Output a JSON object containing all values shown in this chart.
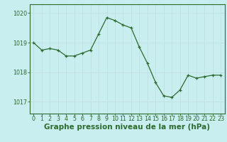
{
  "x": [
    0,
    1,
    2,
    3,
    4,
    5,
    6,
    7,
    8,
    9,
    10,
    11,
    12,
    13,
    14,
    15,
    16,
    17,
    18,
    19,
    20,
    21,
    22,
    23
  ],
  "y": [
    1019.0,
    1018.75,
    1018.8,
    1018.75,
    1018.55,
    1018.55,
    1018.65,
    1018.75,
    1019.3,
    1019.85,
    1019.75,
    1019.6,
    1019.5,
    1018.85,
    1018.3,
    1017.65,
    1017.2,
    1017.15,
    1017.4,
    1017.9,
    1017.8,
    1017.85,
    1017.9,
    1017.9
  ],
  "line_color": "#2d6a2d",
  "marker_color": "#2d6a2d",
  "bg_color": "#c8eef0",
  "grid_color": "#c0dfe0",
  "xlabel": "Graphe pression niveau de la mer (hPa)",
  "ylim": [
    1016.6,
    1020.3
  ],
  "yticks": [
    1017,
    1018,
    1019,
    1020
  ],
  "xticks": [
    0,
    1,
    2,
    3,
    4,
    5,
    6,
    7,
    8,
    9,
    10,
    11,
    12,
    13,
    14,
    15,
    16,
    17,
    18,
    19,
    20,
    21,
    22,
    23
  ],
  "tick_color": "#2d6a2d",
  "axis_color": "#2d6a2d",
  "xlabel_fontsize": 7.5,
  "xlabel_color": "#2d6a2d",
  "tick_fontsize": 5.8,
  "line_width": 0.9,
  "marker_size": 3.5,
  "marker_ew": 0.9
}
